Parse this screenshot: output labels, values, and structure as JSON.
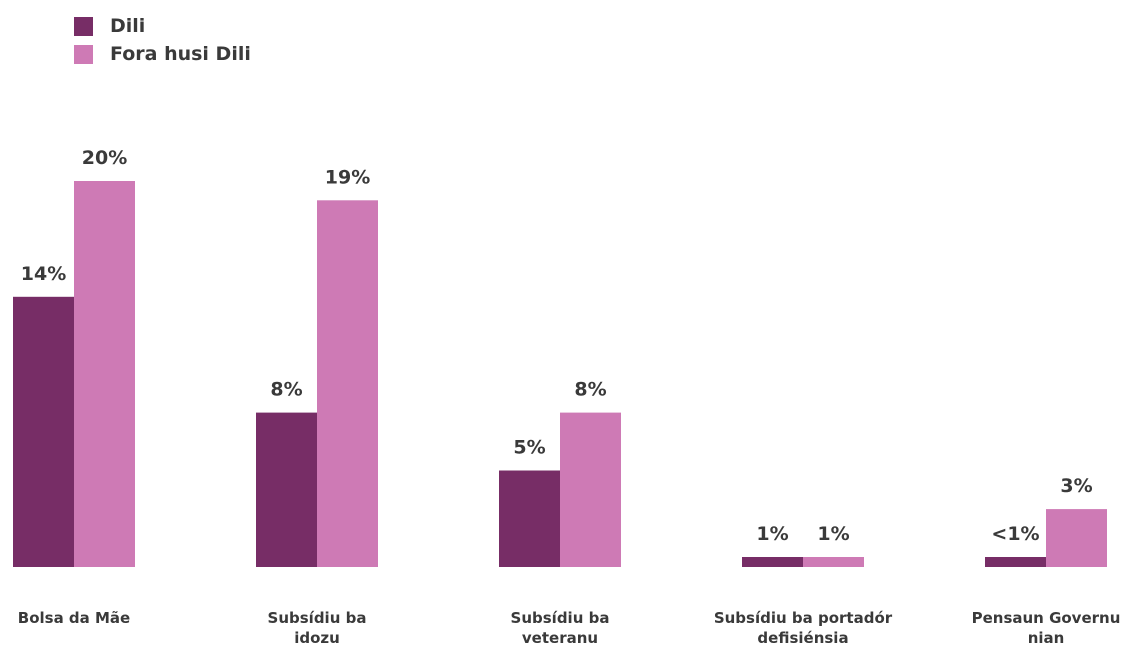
{
  "chart_data": {
    "type": "bar",
    "title": "",
    "xlabel": "",
    "ylabel": "",
    "ylim": [
      0,
      20
    ],
    "grid": false,
    "legend_position": "top-left",
    "categories": [
      "Bolsa da Mãe",
      "Subsídiu ba\nidozu",
      "Subsídiu ba\nveteranu",
      "Subsídiu ba portadór\ndefisiénsia",
      "Pensaun Governu\nnian"
    ],
    "series": [
      {
        "name": "Dili",
        "color": "#772d66",
        "values": [
          14,
          8,
          5,
          0.5,
          0.5
        ],
        "labels": [
          "14%",
          "8%",
          "5%",
          "1%",
          "<1%"
        ]
      },
      {
        "name": "Fora husi Dili",
        "color": "#ce7ab5",
        "values": [
          20,
          19,
          8,
          0.5,
          3
        ],
        "labels": [
          "20%",
          "19%",
          "8%",
          "1%",
          "3%"
        ]
      }
    ]
  }
}
